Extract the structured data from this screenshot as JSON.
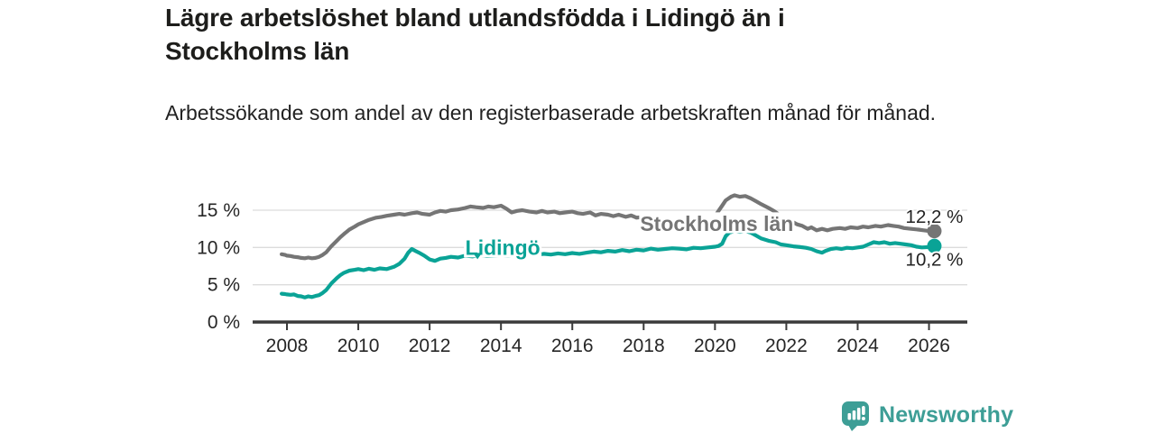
{
  "header": {
    "title": "Lägre arbetslöshet bland utlandsfödda i Lidingö än i Stockholms län",
    "subtitle": "Arbetssökande som andel av den registerbaserade arbetskraften månad för månad."
  },
  "footer": {
    "brand": "Newsworthy",
    "logo_icon": "speech-bubble-bar-chart-icon"
  },
  "colors": {
    "stockholm_line": "#757575",
    "lidingo_line": "#0aa396",
    "grid": "#dcdcdc",
    "axis": "#3a3a3a",
    "tick_text": "#262626",
    "value_text": "#222222",
    "brand_teal": "#3d9e96",
    "background": "#ffffff"
  },
  "chart_data": {
    "type": "line",
    "title": "Lägre arbetslöshet bland utlandsfödda i Lidingö än i Stockholms län",
    "subtitle": "Arbetssökande som andel av den registerbaserade arbetskraften månad för månad.",
    "xlabel": "",
    "ylabel": "",
    "grid": "horizontal",
    "legend_position": "inline-labels",
    "ylim": [
      0,
      17.5
    ],
    "xlim": [
      2007.05,
      2027.1
    ],
    "y_ticks": [
      0,
      5,
      10,
      15
    ],
    "y_tick_suffix": " %",
    "x_ticks": [
      2008,
      2010,
      2012,
      2014,
      2016,
      2018,
      2020,
      2022,
      2024,
      2026
    ],
    "series": [
      {
        "name": "Stockholms län",
        "color": "#757575",
        "end_label": "12,2 %",
        "end_value": 12.2,
        "label_year": 2020.05,
        "label_pct": 13.2,
        "points": [
          [
            2007.85,
            9.1
          ],
          [
            2007.95,
            9.0
          ],
          [
            2008.0,
            8.9
          ],
          [
            2008.1,
            8.85
          ],
          [
            2008.2,
            8.75
          ],
          [
            2008.3,
            8.7
          ],
          [
            2008.4,
            8.6
          ],
          [
            2008.5,
            8.55
          ],
          [
            2008.6,
            8.65
          ],
          [
            2008.7,
            8.55
          ],
          [
            2008.8,
            8.6
          ],
          [
            2008.9,
            8.75
          ],
          [
            2009.0,
            9.0
          ],
          [
            2009.1,
            9.35
          ],
          [
            2009.25,
            10.2
          ],
          [
            2009.4,
            10.9
          ],
          [
            2009.5,
            11.4
          ],
          [
            2009.6,
            11.8
          ],
          [
            2009.75,
            12.4
          ],
          [
            2009.9,
            12.8
          ],
          [
            2010.0,
            13.1
          ],
          [
            2010.15,
            13.4
          ],
          [
            2010.3,
            13.7
          ],
          [
            2010.5,
            14.0
          ],
          [
            2010.65,
            14.1
          ],
          [
            2010.8,
            14.25
          ],
          [
            2011.0,
            14.4
          ],
          [
            2011.15,
            14.5
          ],
          [
            2011.3,
            14.4
          ],
          [
            2011.5,
            14.6
          ],
          [
            2011.65,
            14.7
          ],
          [
            2011.8,
            14.5
          ],
          [
            2012.0,
            14.4
          ],
          [
            2012.15,
            14.7
          ],
          [
            2012.3,
            14.9
          ],
          [
            2012.45,
            14.8
          ],
          [
            2012.6,
            15.0
          ],
          [
            2012.8,
            15.1
          ],
          [
            2013.0,
            15.3
          ],
          [
            2013.15,
            15.5
          ],
          [
            2013.3,
            15.4
          ],
          [
            2013.5,
            15.3
          ],
          [
            2013.65,
            15.5
          ],
          [
            2013.8,
            15.4
          ],
          [
            2014.0,
            15.6
          ],
          [
            2014.15,
            15.2
          ],
          [
            2014.3,
            14.7
          ],
          [
            2014.45,
            14.9
          ],
          [
            2014.6,
            15.0
          ],
          [
            2014.8,
            14.8
          ],
          [
            2015.0,
            14.7
          ],
          [
            2015.15,
            14.9
          ],
          [
            2015.3,
            14.7
          ],
          [
            2015.5,
            14.8
          ],
          [
            2015.65,
            14.6
          ],
          [
            2015.8,
            14.7
          ],
          [
            2016.0,
            14.8
          ],
          [
            2016.15,
            14.6
          ],
          [
            2016.3,
            14.5
          ],
          [
            2016.5,
            14.7
          ],
          [
            2016.65,
            14.3
          ],
          [
            2016.8,
            14.5
          ],
          [
            2017.0,
            14.4
          ],
          [
            2017.15,
            14.2
          ],
          [
            2017.3,
            14.4
          ],
          [
            2017.5,
            14.1
          ],
          [
            2017.65,
            14.3
          ],
          [
            2017.8,
            14.0
          ],
          [
            2018.0,
            14.1
          ],
          [
            2018.2,
            14.0
          ],
          [
            2018.4,
            14.1
          ],
          [
            2018.6,
            13.9
          ],
          [
            2018.8,
            13.8
          ],
          [
            2019.0,
            13.9
          ],
          [
            2019.2,
            13.8
          ],
          [
            2019.4,
            13.7
          ],
          [
            2019.6,
            13.8
          ],
          [
            2019.8,
            14.0
          ],
          [
            2020.0,
            14.2
          ],
          [
            2020.1,
            14.9
          ],
          [
            2020.2,
            15.6
          ],
          [
            2020.3,
            16.3
          ],
          [
            2020.45,
            16.8
          ],
          [
            2020.55,
            17.0
          ],
          [
            2020.7,
            16.8
          ],
          [
            2020.85,
            16.9
          ],
          [
            2021.0,
            16.6
          ],
          [
            2021.15,
            16.2
          ],
          [
            2021.3,
            15.8
          ],
          [
            2021.5,
            15.3
          ],
          [
            2021.65,
            14.9
          ],
          [
            2021.8,
            14.4
          ],
          [
            2022.0,
            13.8
          ],
          [
            2022.15,
            13.5
          ],
          [
            2022.3,
            13.1
          ],
          [
            2022.45,
            12.9
          ],
          [
            2022.6,
            12.5
          ],
          [
            2022.7,
            12.7
          ],
          [
            2022.85,
            12.3
          ],
          [
            2023.0,
            12.5
          ],
          [
            2023.15,
            12.3
          ],
          [
            2023.3,
            12.5
          ],
          [
            2023.5,
            12.6
          ],
          [
            2023.65,
            12.5
          ],
          [
            2023.8,
            12.7
          ],
          [
            2024.0,
            12.6
          ],
          [
            2024.15,
            12.8
          ],
          [
            2024.3,
            12.7
          ],
          [
            2024.5,
            12.9
          ],
          [
            2024.65,
            12.8
          ],
          [
            2024.85,
            13.0
          ],
          [
            2025.0,
            12.9
          ],
          [
            2025.15,
            12.8
          ],
          [
            2025.3,
            12.6
          ],
          [
            2025.5,
            12.5
          ],
          [
            2025.7,
            12.4
          ],
          [
            2025.85,
            12.3
          ],
          [
            2026.0,
            12.2
          ],
          [
            2026.15,
            12.2
          ]
        ]
      },
      {
        "name": "Lidingö",
        "color": "#0aa396",
        "end_label": "10,2 %",
        "end_value": 10.2,
        "label_year": 2014.05,
        "label_pct": 10.0,
        "points": [
          [
            2007.85,
            3.8
          ],
          [
            2007.95,
            3.75
          ],
          [
            2008.0,
            3.7
          ],
          [
            2008.1,
            3.65
          ],
          [
            2008.2,
            3.7
          ],
          [
            2008.3,
            3.5
          ],
          [
            2008.4,
            3.45
          ],
          [
            2008.5,
            3.3
          ],
          [
            2008.6,
            3.45
          ],
          [
            2008.7,
            3.35
          ],
          [
            2008.8,
            3.5
          ],
          [
            2008.9,
            3.6
          ],
          [
            2009.0,
            3.9
          ],
          [
            2009.1,
            4.3
          ],
          [
            2009.25,
            5.2
          ],
          [
            2009.4,
            5.9
          ],
          [
            2009.5,
            6.3
          ],
          [
            2009.6,
            6.6
          ],
          [
            2009.75,
            6.9
          ],
          [
            2009.9,
            7.0
          ],
          [
            2010.0,
            7.1
          ],
          [
            2010.15,
            6.95
          ],
          [
            2010.3,
            7.15
          ],
          [
            2010.45,
            7.0
          ],
          [
            2010.6,
            7.2
          ],
          [
            2010.8,
            7.1
          ],
          [
            2011.0,
            7.4
          ],
          [
            2011.15,
            7.8
          ],
          [
            2011.3,
            8.5
          ],
          [
            2011.4,
            9.3
          ],
          [
            2011.5,
            9.8
          ],
          [
            2011.6,
            9.55
          ],
          [
            2011.7,
            9.3
          ],
          [
            2011.85,
            8.9
          ],
          [
            2012.0,
            8.4
          ],
          [
            2012.15,
            8.2
          ],
          [
            2012.3,
            8.5
          ],
          [
            2012.45,
            8.6
          ],
          [
            2012.6,
            8.75
          ],
          [
            2012.8,
            8.65
          ],
          [
            2013.0,
            8.9
          ],
          [
            2013.2,
            8.8
          ],
          [
            2013.4,
            9.0
          ],
          [
            2013.6,
            8.85
          ],
          [
            2013.8,
            8.9
          ],
          [
            2014.0,
            9.0
          ],
          [
            2014.2,
            8.9
          ],
          [
            2014.4,
            9.05
          ],
          [
            2014.6,
            8.95
          ],
          [
            2014.8,
            9.1
          ],
          [
            2015.0,
            9.0
          ],
          [
            2015.2,
            9.15
          ],
          [
            2015.4,
            9.05
          ],
          [
            2015.6,
            9.2
          ],
          [
            2015.8,
            9.1
          ],
          [
            2016.0,
            9.25
          ],
          [
            2016.2,
            9.15
          ],
          [
            2016.4,
            9.3
          ],
          [
            2016.6,
            9.45
          ],
          [
            2016.8,
            9.35
          ],
          [
            2017.0,
            9.55
          ],
          [
            2017.2,
            9.45
          ],
          [
            2017.4,
            9.65
          ],
          [
            2017.6,
            9.5
          ],
          [
            2017.8,
            9.7
          ],
          [
            2018.0,
            9.6
          ],
          [
            2018.2,
            9.85
          ],
          [
            2018.4,
            9.7
          ],
          [
            2018.6,
            9.8
          ],
          [
            2018.8,
            9.9
          ],
          [
            2019.0,
            9.85
          ],
          [
            2019.2,
            9.75
          ],
          [
            2019.4,
            9.95
          ],
          [
            2019.6,
            9.9
          ],
          [
            2019.8,
            10.0
          ],
          [
            2020.0,
            10.1
          ],
          [
            2020.1,
            10.2
          ],
          [
            2020.2,
            10.5
          ],
          [
            2020.3,
            11.5
          ],
          [
            2020.4,
            12.0
          ],
          [
            2020.55,
            12.2
          ],
          [
            2020.7,
            12.1
          ],
          [
            2020.85,
            12.2
          ],
          [
            2021.0,
            12.0
          ],
          [
            2021.15,
            11.6
          ],
          [
            2021.3,
            11.2
          ],
          [
            2021.5,
            10.9
          ],
          [
            2021.7,
            10.7
          ],
          [
            2021.85,
            10.4
          ],
          [
            2022.0,
            10.3
          ],
          [
            2022.2,
            10.15
          ],
          [
            2022.4,
            10.05
          ],
          [
            2022.55,
            9.95
          ],
          [
            2022.7,
            9.8
          ],
          [
            2022.85,
            9.5
          ],
          [
            2023.0,
            9.3
          ],
          [
            2023.1,
            9.55
          ],
          [
            2023.25,
            9.8
          ],
          [
            2023.4,
            9.9
          ],
          [
            2023.55,
            9.8
          ],
          [
            2023.7,
            9.95
          ],
          [
            2023.85,
            9.9
          ],
          [
            2024.0,
            10.0
          ],
          [
            2024.15,
            10.1
          ],
          [
            2024.3,
            10.4
          ],
          [
            2024.45,
            10.7
          ],
          [
            2024.6,
            10.6
          ],
          [
            2024.75,
            10.7
          ],
          [
            2024.9,
            10.5
          ],
          [
            2025.05,
            10.6
          ],
          [
            2025.2,
            10.5
          ],
          [
            2025.35,
            10.4
          ],
          [
            2025.5,
            10.3
          ],
          [
            2025.65,
            10.1
          ],
          [
            2025.8,
            10.0
          ],
          [
            2026.0,
            10.05
          ],
          [
            2026.15,
            10.2
          ]
        ]
      }
    ]
  }
}
